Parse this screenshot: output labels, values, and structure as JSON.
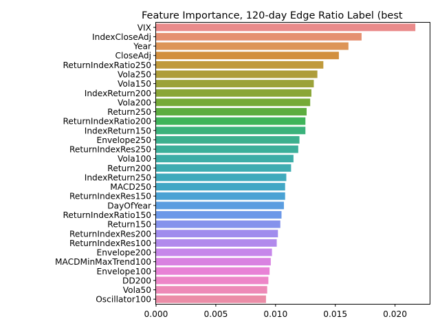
{
  "chart_data": {
    "type": "bar",
    "orientation": "horizontal",
    "title": "Feature Importance, 120-day Edge Ratio Label (best",
    "xlabel": "",
    "ylabel": "",
    "xlim": [
      0,
      0.0229
    ],
    "xticks": [
      "0.000",
      "0.005",
      "0.010",
      "0.015",
      "0.020"
    ],
    "xtick_values": [
      0,
      0.005,
      0.01,
      0.015,
      0.02
    ],
    "grid": false,
    "categories": [
      "VIX",
      "IndexCloseAdj",
      "Year",
      "CloseAdj",
      "ReturnIndexRatio250",
      "Vola250",
      "Vola150",
      "IndexReturn200",
      "Vola200",
      "Return250",
      "ReturnIndexRatio200",
      "IndexReturn150",
      "Envelope250",
      "ReturnIndexRes250",
      "Vola100",
      "Return200",
      "IndexReturn250",
      "MACD250",
      "ReturnIndexRes150",
      "DayOfYear",
      "ReturnIndexRatio150",
      "Return150",
      "ReturnIndexRes200",
      "ReturnIndexRes100",
      "Envelope200",
      "MACDMinMaxTrend100",
      "Envelope100",
      "DD200",
      "Vola50",
      "Oscillator100"
    ],
    "values": [
      0.0217,
      0.0172,
      0.0161,
      0.0153,
      0.014,
      0.0135,
      0.0132,
      0.013,
      0.0129,
      0.0126,
      0.0125,
      0.0125,
      0.012,
      0.0119,
      0.0115,
      0.0113,
      0.0109,
      0.0108,
      0.0108,
      0.0107,
      0.0105,
      0.0104,
      0.0102,
      0.0101,
      0.0097,
      0.0096,
      0.0095,
      0.0094,
      0.0093,
      0.0092
    ],
    "colors": [
      "#ea8b8b",
      "#e59071",
      "#dd9557",
      "#d28f3e",
      "#c09a3c",
      "#ae9d3a",
      "#9ba239",
      "#8aa637",
      "#75aa36",
      "#5cad3f",
      "#3fb45a",
      "#3bb27b",
      "#3cb08e",
      "#3caf9a",
      "#3dada7",
      "#3eacb1",
      "#3faabc",
      "#42a7c5",
      "#4aa2d4",
      "#5b9de0",
      "#6c98e8",
      "#8592ec",
      "#a08ced",
      "#b18aec",
      "#c687ea",
      "#d982e1",
      "#e882d6",
      "#ed86c8",
      "#ed8ab7",
      "#eb8da7"
    ]
  }
}
